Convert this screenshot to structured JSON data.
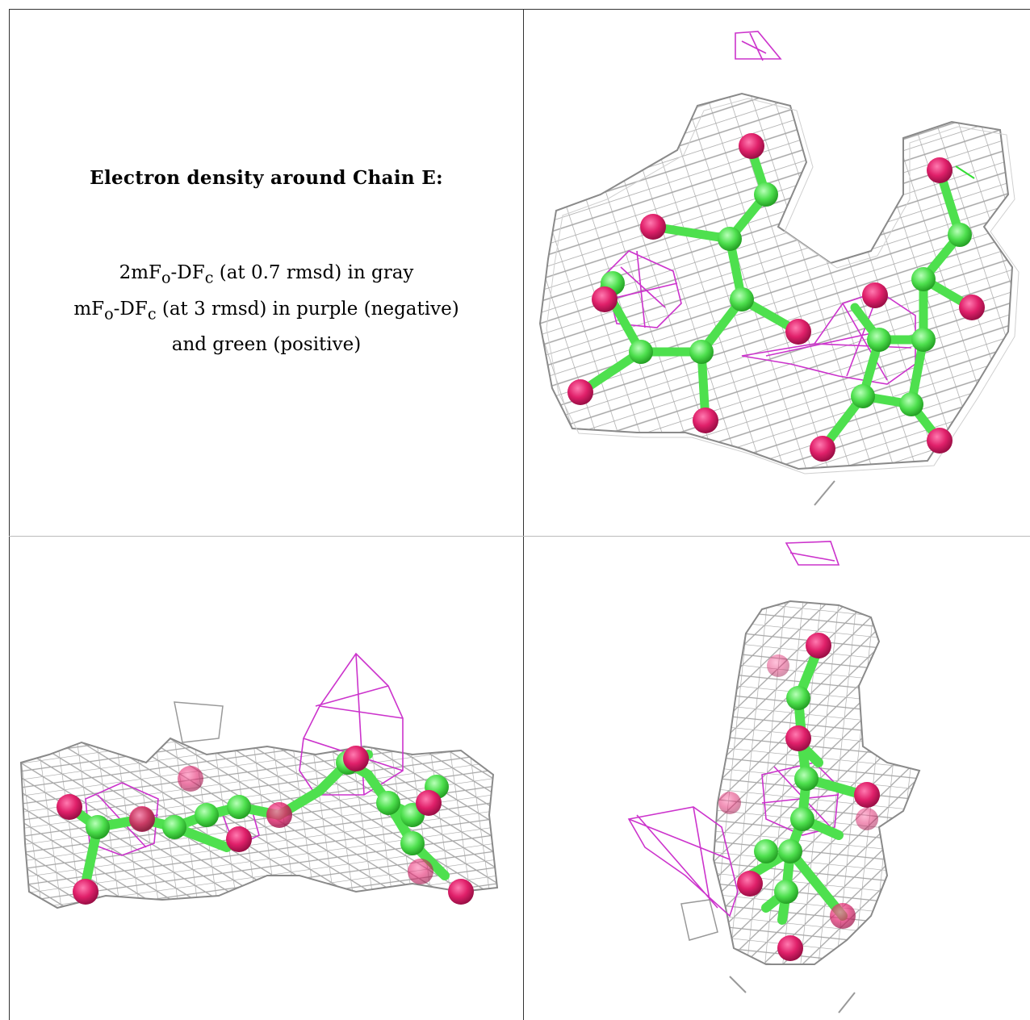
{
  "caption": {
    "title": "Electron density around Chain E:",
    "line1": {
      "a": "2mF",
      "a_sub": "o",
      "b": "-DF",
      "b_sub": "c",
      "rest": " (at 0.7 rmsd) in gray"
    },
    "line2": {
      "a": "mF",
      "a_sub": "o",
      "b": "-DF",
      "b_sub": "c",
      "rest": " (at 3 rmsd) in purple (negative)"
    },
    "line3": "and green (positive)"
  },
  "colors": {
    "mesh_2fofc": "#9a9a9a",
    "mesh_negative": "#cc33cc",
    "mesh_positive": "#33dd33",
    "carbon": "#4ee04e",
    "oxygen": "#e0206a",
    "grid_line": "#333333"
  },
  "molecule_views": {
    "view_top_right": "view-1",
    "view_bottom_left": "view-2",
    "view_bottom_right": "view-3"
  }
}
